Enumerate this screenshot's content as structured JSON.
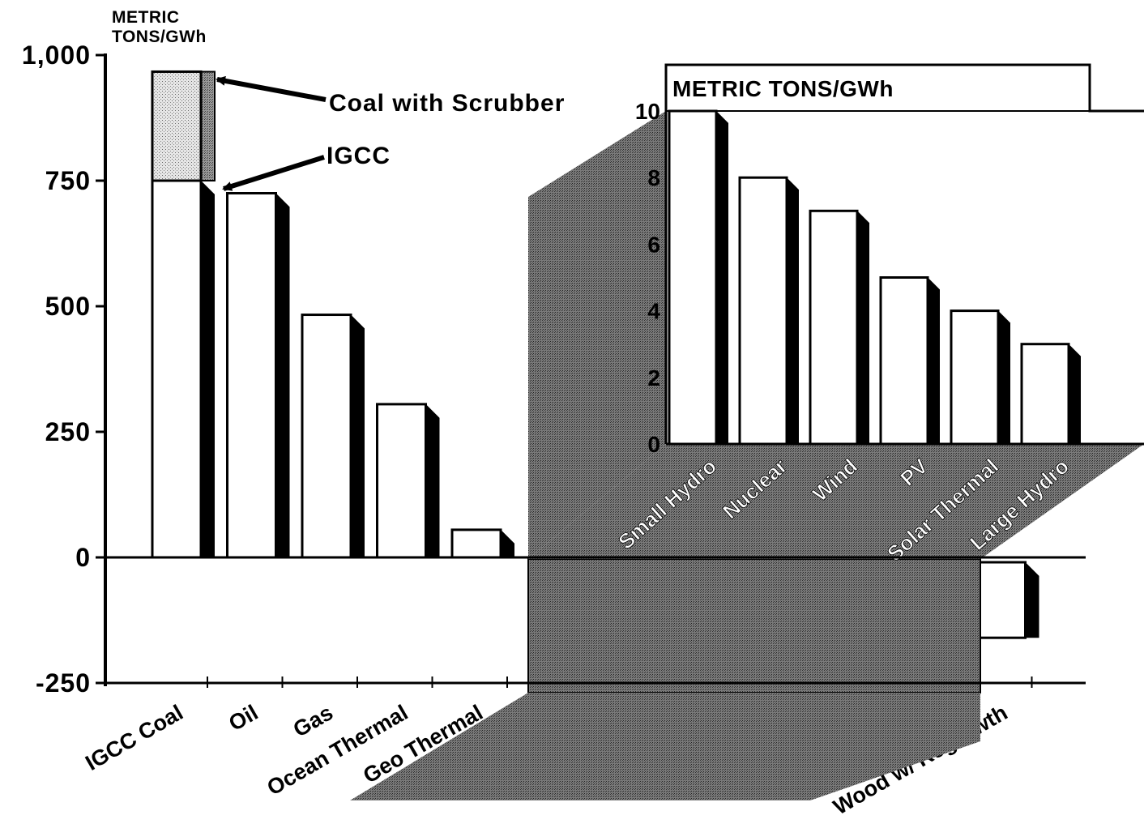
{
  "chart_data": [
    {
      "type": "bar",
      "ylabel": "METRIC TONS/GWh",
      "ylim": [
        -250,
        1000
      ],
      "yticks": [
        "1,000",
        "750",
        "500",
        "250",
        "0",
        "-250"
      ],
      "ytick_values": [
        1000,
        750,
        500,
        250,
        0,
        -250
      ],
      "categories": [
        "IGCC Coal",
        "Oil",
        "Gas",
        "Ocean Thermal",
        "Geo Thermal",
        "Small Hydro",
        "Nuclear",
        "Wind",
        "PV",
        "Solar Thermal",
        "Large Hydro",
        "Wood w/ Regrowth"
      ],
      "values": [
        750,
        725,
        483,
        305,
        55,
        10,
        8,
        7,
        5,
        4,
        3,
        -160
      ],
      "stacked_addition": {
        "category": "IGCC Coal",
        "label": "Coal with Scrubber",
        "from": 750,
        "to": 967
      },
      "annotations": [
        "Coal with Scrubber",
        "IGCC"
      ],
      "grid": false
    },
    {
      "type": "bar",
      "ylabel": "METRIC TONS/GWh",
      "ylim": [
        0,
        10
      ],
      "yticks": [
        "10",
        "8",
        "6",
        "4",
        "2",
        "0"
      ],
      "ytick_values": [
        10,
        8,
        6,
        4,
        2,
        0
      ],
      "categories": [
        "Small Hydro",
        "Nuclear",
        "Wind",
        "PV",
        "Solar Thermal",
        "Large Hydro"
      ],
      "values": [
        10,
        8,
        7,
        5,
        4,
        3
      ],
      "grid": false
    }
  ]
}
